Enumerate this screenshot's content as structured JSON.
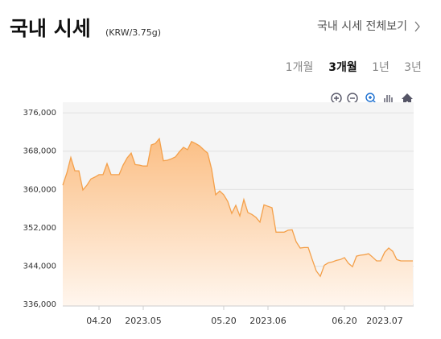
{
  "header": {
    "title": "국내 시세",
    "unit": "(KRW/3.75g)",
    "link": "국내 시세 전체보기"
  },
  "tabs": {
    "labels": [
      "1개월",
      "3개월",
      "1년",
      "3년"
    ],
    "active": 1
  },
  "chart_data": {
    "type": "area",
    "color": "#f4a04a",
    "grid": true,
    "ylim": [
      335700,
      378200
    ],
    "yticks": [
      {
        "value": 336000,
        "label": "336,000"
      },
      {
        "value": 344000,
        "label": "344,000"
      },
      {
        "value": 352000,
        "label": "352,000"
      },
      {
        "value": 360000,
        "label": "360,000"
      },
      {
        "value": 368000,
        "label": "368,000"
      },
      {
        "value": 376000,
        "label": "376,000"
      }
    ],
    "categories": [
      null,
      null,
      null,
      null,
      null,
      null,
      null,
      null,
      null,
      "04.20",
      null,
      null,
      null,
      null,
      null,
      null,
      null,
      null,
      null,
      null,
      "2023.05",
      null,
      null,
      null,
      null,
      null,
      null,
      null,
      null,
      null,
      null,
      null,
      null,
      null,
      null,
      null,
      null,
      null,
      null,
      null,
      "05.20",
      null,
      null,
      null,
      null,
      null,
      null,
      null,
      null,
      null,
      null,
      "2023.06",
      null,
      null,
      null,
      null,
      null,
      null,
      null,
      null,
      null,
      null,
      null,
      null,
      null,
      null,
      null,
      null,
      null,
      null,
      "06.20",
      null,
      null,
      null,
      null,
      null,
      null,
      null,
      null,
      null,
      "2023.07",
      null,
      null,
      null,
      null,
      null,
      null,
      null
    ],
    "values": [
      360900,
      363400,
      366700,
      363900,
      363900,
      359900,
      360900,
      362200,
      362600,
      363100,
      363100,
      365400,
      363100,
      363100,
      363100,
      365100,
      366600,
      367600,
      365200,
      365100,
      364900,
      364900,
      369300,
      369600,
      370600,
      366000,
      366100,
      366400,
      366800,
      367900,
      368800,
      368300,
      370000,
      369600,
      369100,
      368300,
      367600,
      364200,
      358900,
      359700,
      358900,
      357500,
      355000,
      356700,
      354500,
      357900,
      355200,
      354800,
      354200,
      353200,
      356800,
      356500,
      356200,
      351100,
      351100,
      351100,
      351500,
      351600,
      349100,
      347800,
      347900,
      347900,
      345400,
      343000,
      341900,
      344200,
      344700,
      344900,
      345200,
      345400,
      345800,
      344600,
      343900,
      346100,
      346300,
      346400,
      346600,
      345900,
      345100,
      345100,
      346900,
      347800,
      347100,
      345400,
      345100,
      345100,
      345100,
      345100
    ]
  }
}
